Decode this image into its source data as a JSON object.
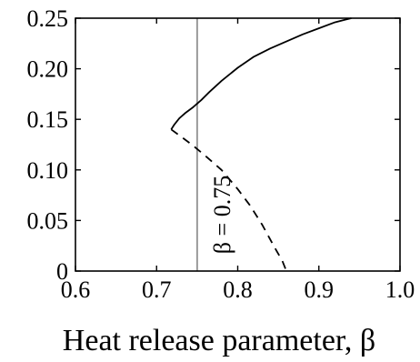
{
  "chart_data": {
    "type": "line",
    "title": "",
    "xlabel": "Heat release parameter, β",
    "ylabel": "",
    "xlim": [
      0.6,
      1.0
    ],
    "ylim": [
      0,
      0.25
    ],
    "xticks": [
      0.6,
      0.7,
      0.8,
      0.9,
      1.0
    ],
    "xtick_labels": [
      "0.6",
      "0.7",
      "0.8",
      "0.9",
      "1.0"
    ],
    "yticks": [
      0,
      0.05,
      0.1,
      0.15,
      0.2,
      0.25
    ],
    "ytick_labels": [
      "0",
      "0.05",
      "0.10",
      "0.15",
      "0.20",
      "0.25"
    ],
    "grid": false,
    "series": [
      {
        "style": "solid",
        "color": "#000000",
        "x": [
          0.718,
          0.722,
          0.728,
          0.735,
          0.745,
          0.755,
          0.765,
          0.78,
          0.8,
          0.82,
          0.84,
          0.86,
          0.88,
          0.9,
          0.92,
          0.94
        ],
        "y": [
          0.14,
          0.145,
          0.151,
          0.156,
          0.162,
          0.169,
          0.177,
          0.188,
          0.201,
          0.212,
          0.22,
          0.227,
          0.234,
          0.24,
          0.246,
          0.25
        ]
      },
      {
        "style": "dashed",
        "color": "#000000",
        "x": [
          0.718,
          0.73,
          0.745,
          0.76,
          0.78,
          0.8,
          0.815,
          0.83,
          0.845,
          0.855,
          0.86
        ],
        "y": [
          0.14,
          0.133,
          0.124,
          0.114,
          0.1,
          0.081,
          0.065,
          0.046,
          0.024,
          0.01,
          0.0
        ]
      }
    ],
    "vline": {
      "x": 0.75,
      "color": "#999999",
      "label": "β = 0.75"
    }
  }
}
